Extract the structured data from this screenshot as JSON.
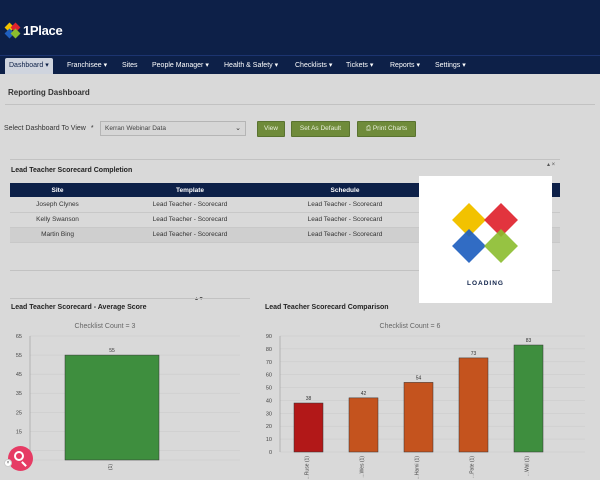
{
  "app": {
    "logo_text": "1Place",
    "logo_colors": [
      "#f2c200",
      "#e0232e",
      "#1f5fbf",
      "#8bbd2e"
    ]
  },
  "nav": {
    "items": [
      {
        "label": "Dashboard ▾",
        "active": true
      },
      {
        "label": "Franchisee ▾"
      },
      {
        "label": "Sites"
      },
      {
        "label": "People Manager ▾"
      },
      {
        "label": "Health & Safety ▾"
      },
      {
        "label": "Checklists ▾"
      },
      {
        "label": "Tickets ▾"
      },
      {
        "label": "Reports ▾"
      },
      {
        "label": "Settings ▾"
      }
    ]
  },
  "page": {
    "title": "Reporting Dashboard"
  },
  "selector": {
    "label": "Select Dashboard To View",
    "required_mark": "*",
    "value": "Kerran Webinar Data",
    "view_button": "View",
    "default_button": "Set As Default",
    "print_button": "⎙ Print Charts"
  },
  "table": {
    "title": "Lead Teacher Scorecard Completion",
    "columns": [
      "Site",
      "Template",
      "Schedule",
      ""
    ],
    "rows": [
      [
        "Joseph Clynes",
        "Lead Teacher - Scorecard",
        "Lead Teacher - Scorecard",
        ""
      ],
      [
        "Kelly Swanson",
        "Lead Teacher - Scorecard",
        "Lead Teacher - Scorecard",
        ""
      ],
      [
        "Martin Bing",
        "Lead Teacher - Scorecard",
        "Lead Teacher - Scorecard",
        ""
      ]
    ],
    "corner_marks": "▴ ×"
  },
  "loading": {
    "text": "LOADING",
    "colors": [
      "#f2c200",
      "#e0232e",
      "#1f5fbf",
      "#8bbd2e"
    ]
  },
  "chart_data": [
    {
      "type": "bar",
      "title": "Lead Teacher Scorecard - Average Score",
      "subtitle": "Checklist Count = 3",
      "yticks": [
        0,
        5,
        15,
        25,
        35,
        45,
        55,
        65
      ],
      "ylim": [
        0,
        65
      ],
      "categories": [
        "(1)"
      ],
      "values": [
        55
      ],
      "labels": [
        "55"
      ],
      "colors": [
        "#3e8e3e"
      ]
    },
    {
      "type": "bar",
      "title": "Lead Teacher Scorecard Comparison",
      "subtitle": "Checklist Count = 6",
      "yticks": [
        0,
        10,
        20,
        30,
        40,
        50,
        60,
        70,
        80,
        90
      ],
      "ylim": [
        0,
        90
      ],
      "categories": [
        "...Ruse (1)",
        "...Wes (1)",
        "...Hami (1)",
        "...Pate (1)",
        "...Wal (1)"
      ],
      "values": [
        38,
        42,
        54,
        73,
        83
      ],
      "labels": [
        "38",
        "42",
        "54",
        "73",
        "83"
      ],
      "colors": [
        "#b21818",
        "#c4531e",
        "#c4531e",
        "#c4531e",
        "#3e8e3e"
      ]
    }
  ],
  "chart_controls": {
    "mark": "▴ ▾"
  },
  "help_button": {
    "small_mark": "×"
  }
}
